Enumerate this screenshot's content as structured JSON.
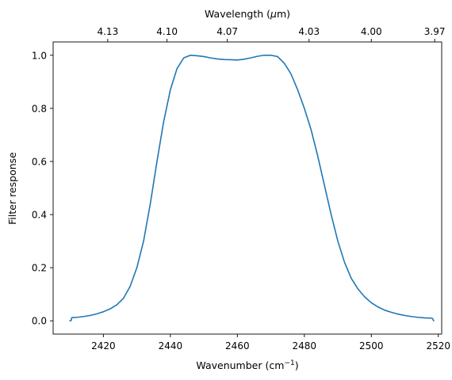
{
  "chart_data": {
    "type": "line",
    "title": "",
    "xlabel": "Wavenumber (cm",
    "xlabel_sup": "−1",
    "xlabel_close": ")",
    "ylabel": "Filter response",
    "top_xlabel": "Wavelength (",
    "top_xlabel_unit": "μ",
    "top_xlabel_rest": "m)",
    "xlim": [
      2405,
      2521
    ],
    "ylim": [
      -0.05,
      1.05
    ],
    "grid": false,
    "legend": "none",
    "line_color": "#1f77b4",
    "x_ticks": [
      2420,
      2440,
      2460,
      2480,
      2500,
      2520
    ],
    "y_ticks": [
      0.0,
      0.2,
      0.4,
      0.6,
      0.8,
      1.0
    ],
    "y_tick_labels": [
      "0.0",
      "0.2",
      "0.4",
      "0.6",
      "0.8",
      "1.0"
    ],
    "top_ticks": [
      {
        "label": "4.13",
        "wavenumber": 2421.3
      },
      {
        "label": "4.10",
        "wavenumber": 2439.0
      },
      {
        "label": "4.07",
        "wavenumber": 2457.0
      },
      {
        "label": "4.03",
        "wavenumber": 2481.4
      },
      {
        "label": "4.00",
        "wavenumber": 2500.0
      },
      {
        "label": "3.97",
        "wavenumber": 2518.9
      }
    ],
    "series": [
      {
        "x": [
          2410,
          2410.3,
          2410.6,
          2412,
          2414,
          2416,
          2418,
          2420,
          2422,
          2424,
          2426,
          2428,
          2430,
          2432,
          2434,
          2436,
          2438,
          2440,
          2442,
          2444,
          2446,
          2448,
          2450,
          2452,
          2454,
          2456,
          2458,
          2460,
          2462,
          2464,
          2466,
          2468,
          2470,
          2472,
          2474,
          2476,
          2478,
          2480,
          2482,
          2484,
          2486,
          2488,
          2490,
          2492,
          2494,
          2496,
          2498,
          2500,
          2502,
          2504,
          2506,
          2508,
          2510,
          2512,
          2514,
          2516,
          2518,
          2518.3,
          2518.6
        ],
        "y": [
          0.0,
          0.0,
          0.012,
          0.013,
          0.016,
          0.02,
          0.026,
          0.034,
          0.045,
          0.06,
          0.085,
          0.13,
          0.2,
          0.3,
          0.44,
          0.6,
          0.75,
          0.87,
          0.95,
          0.99,
          1.0,
          0.998,
          0.995,
          0.99,
          0.986,
          0.984,
          0.983,
          0.982,
          0.985,
          0.99,
          0.996,
          1.0,
          1.0,
          0.995,
          0.97,
          0.93,
          0.87,
          0.8,
          0.72,
          0.62,
          0.51,
          0.4,
          0.3,
          0.22,
          0.16,
          0.12,
          0.09,
          0.068,
          0.052,
          0.04,
          0.032,
          0.025,
          0.02,
          0.016,
          0.013,
          0.011,
          0.01,
          0.008,
          0.0
        ]
      }
    ]
  }
}
